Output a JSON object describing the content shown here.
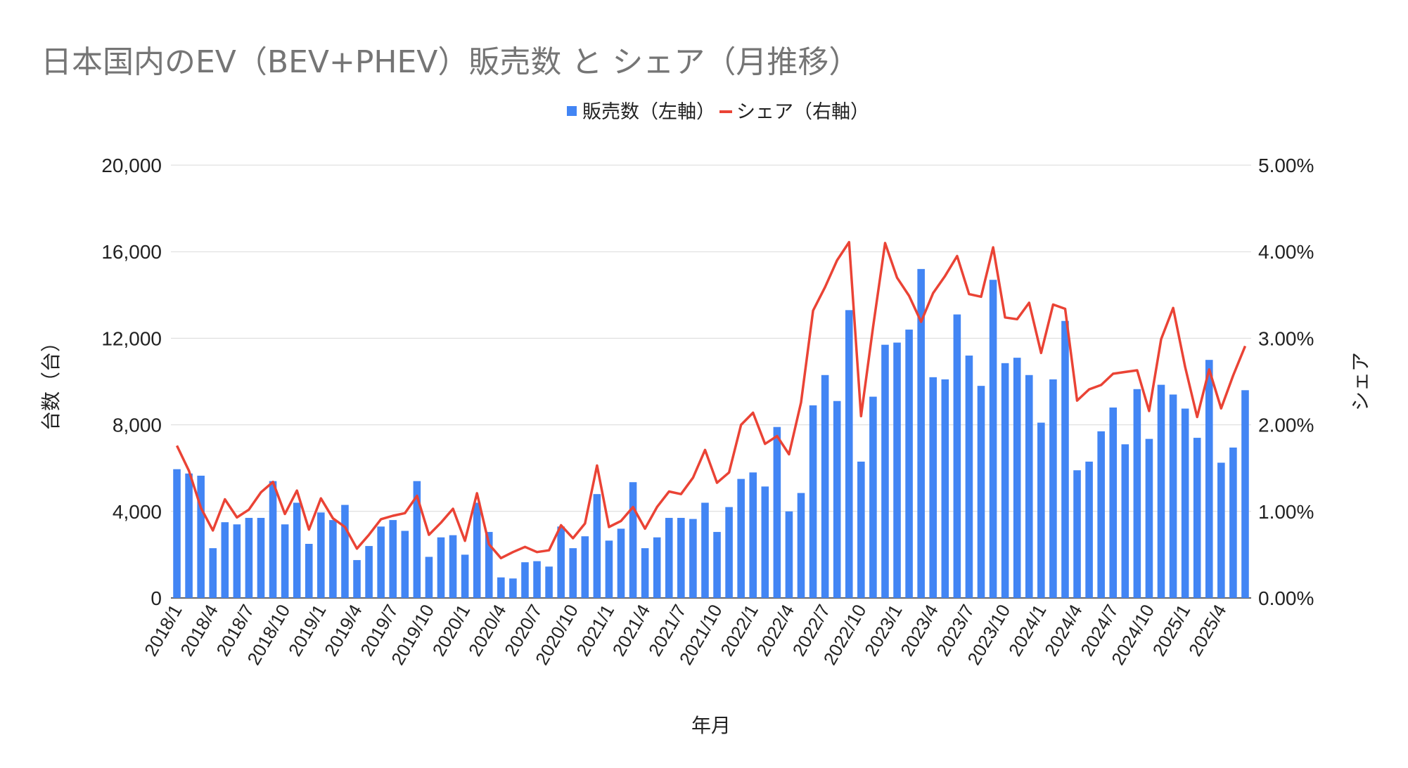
{
  "chart_data": {
    "type": "bar+line",
    "title": "日本国内のEV（BEV+PHEV）販売数 と シェア（月推移）",
    "xlabel": "年月",
    "ylabel_left": "台数（台）",
    "ylabel_right": "シェア",
    "ylim_left": [
      0,
      20000
    ],
    "ylim_right": [
      0,
      0.05
    ],
    "yticks_left": [
      "0",
      "4,000",
      "8,000",
      "12,000",
      "16,000",
      "20,000"
    ],
    "yticks_right": [
      "0.00%",
      "1.00%",
      "2.00%",
      "3.00%",
      "4.00%",
      "5.00%"
    ],
    "grid": true,
    "legend_position": "top",
    "x": [
      "2018/1",
      "2018/2",
      "2018/3",
      "2018/4",
      "2018/5",
      "2018/6",
      "2018/7",
      "2018/8",
      "2018/9",
      "2018/10",
      "2018/11",
      "2018/12",
      "2019/1",
      "2019/2",
      "2019/3",
      "2019/4",
      "2019/5",
      "2019/6",
      "2019/7",
      "2019/8",
      "2019/9",
      "2019/10",
      "2019/11",
      "2019/12",
      "2020/1",
      "2020/2",
      "2020/3",
      "2020/4",
      "2020/5",
      "2020/6",
      "2020/7",
      "2020/8",
      "2020/9",
      "2020/10",
      "2020/11",
      "2020/12",
      "2021/1",
      "2021/2",
      "2021/3",
      "2021/4",
      "2021/5",
      "2021/6",
      "2021/7",
      "2021/8",
      "2021/9",
      "2021/10",
      "2021/11",
      "2021/12",
      "2022/1",
      "2022/2",
      "2022/3",
      "2022/4",
      "2022/5",
      "2022/6",
      "2022/7",
      "2022/8",
      "2022/9",
      "2022/10",
      "2022/11",
      "2022/12",
      "2023/1",
      "2023/2",
      "2023/3",
      "2023/4",
      "2023/5",
      "2023/6",
      "2023/7",
      "2023/8",
      "2023/9",
      "2023/10",
      "2023/11",
      "2023/12",
      "2024/1",
      "2024/2",
      "2024/3",
      "2024/4",
      "2024/5",
      "2024/6",
      "2024/7",
      "2024/8",
      "2024/9",
      "2024/10",
      "2024/11",
      "2024/12",
      "2025/1",
      "2025/2",
      "2025/3",
      "2025/4",
      "2025/5",
      "2025/6"
    ],
    "x_tick_labels": [
      "2018/1",
      "2018/4",
      "2018/7",
      "2018/10",
      "2019/1",
      "2019/4",
      "2019/7",
      "2019/10",
      "2020/1",
      "2020/4",
      "2020/7",
      "2020/10",
      "2021/1",
      "2021/4",
      "2021/7",
      "2021/10",
      "2022/1",
      "2022/4",
      "2022/7",
      "2022/10",
      "2023/1",
      "2023/4",
      "2023/7",
      "2023/10",
      "2024/1",
      "2024/4",
      "2024/7",
      "2024/10",
      "2025/1",
      "2025/4"
    ],
    "series": [
      {
        "name": "販売数（左軸）",
        "type": "bar",
        "axis": "left",
        "color": "#4285f4",
        "values": [
          5950,
          5750,
          5650,
          2300,
          3500,
          3400,
          3700,
          3700,
          5400,
          3400,
          4400,
          2500,
          3950,
          3600,
          4300,
          1750,
          2400,
          3300,
          3600,
          3100,
          5400,
          1900,
          2800,
          2900,
          2000,
          4400,
          3050,
          950,
          900,
          1650,
          1700,
          1450,
          3300,
          2300,
          2850,
          4800,
          2650,
          3200,
          5350,
          2300,
          2800,
          3700,
          3700,
          3650,
          4400,
          3050,
          4200,
          5500,
          5800,
          5150,
          7900,
          4000,
          4850,
          8900,
          10300,
          9100,
          13300,
          6300,
          9300,
          11700,
          11800,
          12400,
          15200,
          10200,
          10100,
          13100,
          11200,
          9800,
          14700,
          10850,
          11100,
          10300,
          8100,
          10100,
          12800,
          5900,
          6300,
          7700,
          8800,
          7100,
          9650,
          7350,
          9850,
          9400,
          8750,
          7400,
          11000,
          6250,
          6950,
          9600
        ]
      },
      {
        "name": "シェア（右軸）",
        "type": "line",
        "axis": "right",
        "color": "#ea4335",
        "values": [
          0.0176,
          0.0147,
          0.0104,
          0.0078,
          0.0114,
          0.0093,
          0.0102,
          0.0122,
          0.0134,
          0.0097,
          0.0124,
          0.0079,
          0.0115,
          0.0092,
          0.0082,
          0.0057,
          0.0073,
          0.0091,
          0.0095,
          0.0098,
          0.0118,
          0.0073,
          0.0087,
          0.0103,
          0.0066,
          0.0121,
          0.0062,
          0.0046,
          0.0053,
          0.0059,
          0.0053,
          0.0055,
          0.0084,
          0.0069,
          0.0086,
          0.0153,
          0.0082,
          0.0089,
          0.0105,
          0.008,
          0.0105,
          0.0123,
          0.012,
          0.0139,
          0.0171,
          0.0133,
          0.0145,
          0.02,
          0.0214,
          0.0178,
          0.0187,
          0.0166,
          0.0226,
          0.0332,
          0.0359,
          0.039,
          0.0411,
          0.021,
          0.0313,
          0.041,
          0.037,
          0.0349,
          0.0319,
          0.0352,
          0.0372,
          0.0395,
          0.0351,
          0.0348,
          0.0405,
          0.0324,
          0.0322,
          0.0341,
          0.0283,
          0.0339,
          0.0334,
          0.0228,
          0.0241,
          0.0246,
          0.0259,
          0.0261,
          0.0263,
          0.0216,
          0.0299,
          0.0335,
          0.0267,
          0.0209,
          0.0264,
          0.0219,
          0.0257,
          0.0291
        ]
      }
    ]
  }
}
